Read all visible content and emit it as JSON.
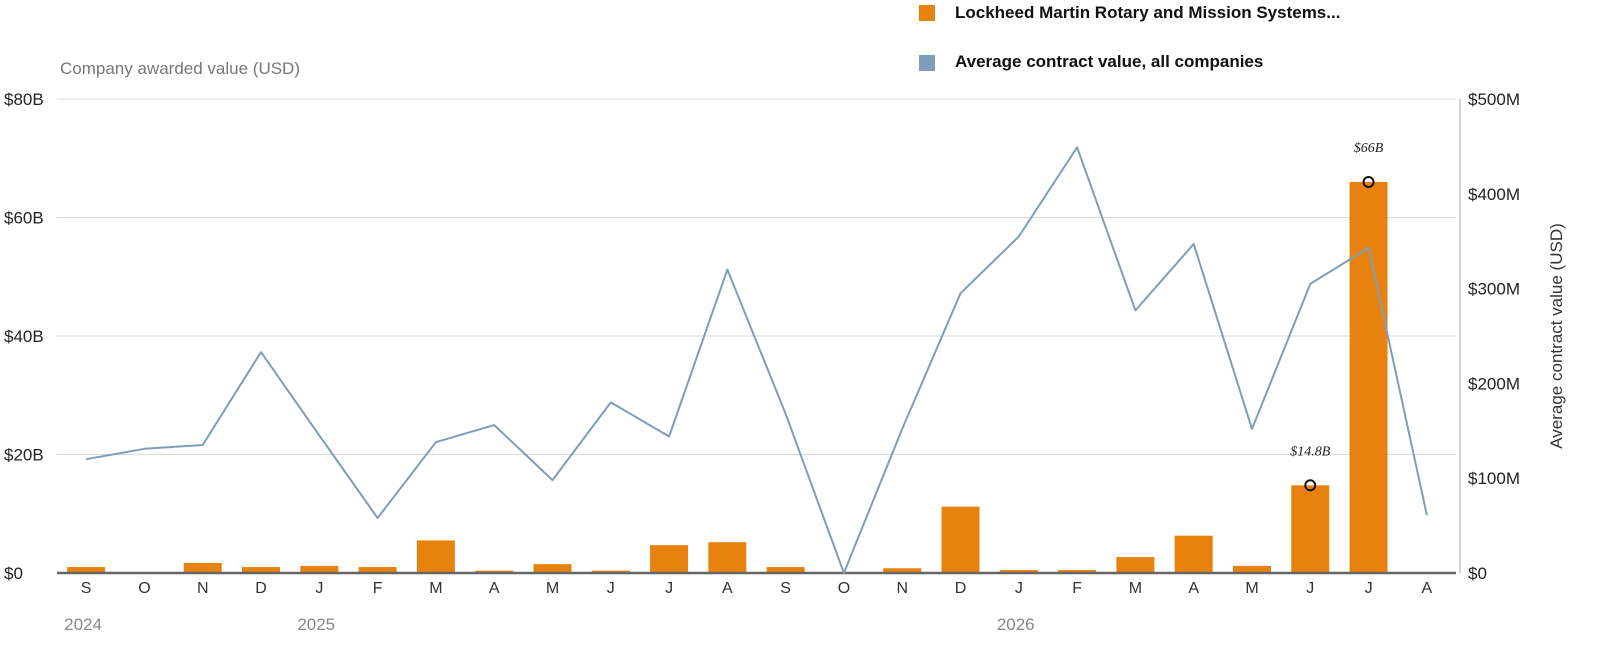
{
  "colors": {
    "company_bar": "#e8820e",
    "average_line": "#7f9db9",
    "grid": "#d9d9d9",
    "baseline": "#666666"
  },
  "chart_data": {
    "type": "bar",
    "categories": [
      "S",
      "O",
      "N",
      "D",
      "J",
      "F",
      "M",
      "A",
      "M",
      "J",
      "J",
      "A",
      "S",
      "O",
      "N",
      "D",
      "J",
      "F",
      "M",
      "A",
      "M",
      "J",
      "J",
      "A"
    ],
    "year_labels": [
      {
        "index": 0,
        "label": "2024"
      },
      {
        "index": 4,
        "label": "2025"
      },
      {
        "index": 16,
        "label": "2026"
      }
    ],
    "series": [
      {
        "name": "Lockheed Martin Rotary and Mission Systems...",
        "type": "bar",
        "axis": "left",
        "color": "#e8820e",
        "values": [
          1.0,
          0,
          1.7,
          1.0,
          1.2,
          1.0,
          5.5,
          0.4,
          1.5,
          0.4,
          4.7,
          5.2,
          1.0,
          0,
          0.8,
          11.2,
          0.5,
          0.5,
          2.7,
          6.3,
          1.2,
          14.8,
          66.0,
          0
        ]
      },
      {
        "name": "Average contract value, all companies",
        "type": "line",
        "axis": "right",
        "color": "#7f9db9",
        "values": [
          120,
          131,
          135,
          233,
          145,
          58,
          138,
          156,
          98,
          180,
          144,
          320,
          168,
          0,
          152,
          295,
          355,
          449,
          277,
          347,
          152,
          305,
          343,
          61
        ]
      }
    ],
    "ylabel_left": "Company awarded value (USD)",
    "ylabel_right": "Average contract value (USD)",
    "ylim_left": [
      0,
      80
    ],
    "ylim_right": [
      0,
      500
    ],
    "yticks_left": [
      0,
      20,
      40,
      60,
      80
    ],
    "yticks_left_labels": [
      "$0",
      "$20B",
      "$40B",
      "$60B",
      "$80B"
    ],
    "yticks_right": [
      0,
      100,
      200,
      300,
      400,
      500
    ],
    "yticks_right_labels": [
      "$0",
      "$100M",
      "$200M",
      "$300M",
      "$400M",
      "$500M"
    ],
    "annotations": [
      {
        "index": 21,
        "value": 14.8,
        "label": "$14.8B"
      },
      {
        "index": 22,
        "value": 66.0,
        "label": "$66B"
      }
    ],
    "grid": true,
    "legend_position": "top-right"
  }
}
